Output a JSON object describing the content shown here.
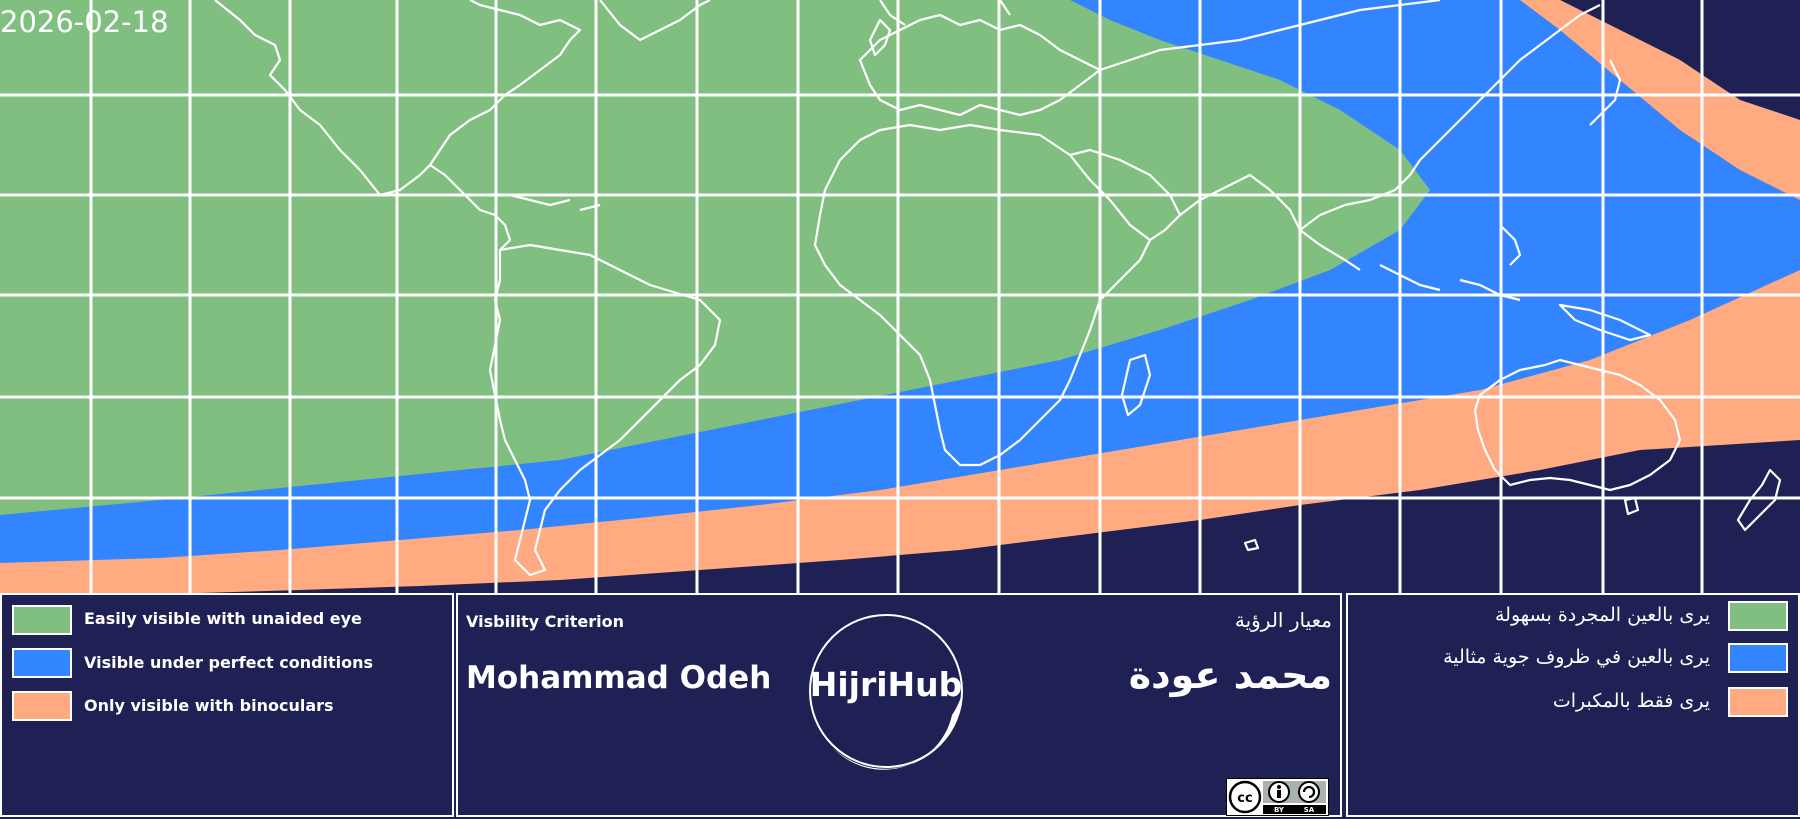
{
  "date": "2026-02-18",
  "colors": {
    "easy": "#80bf80",
    "perfect": "#3385ff",
    "binoculars": "#ffaa80",
    "none": "#1f2155",
    "lines": "#ffffff"
  },
  "legend_en": {
    "easy": "Easily visible with unaided eye",
    "perfect": "Visible under perfect conditions",
    "binoculars": "Only visible with binoculars"
  },
  "criterion": {
    "heading_en": "Visbility Criterion",
    "name_en": "Mohammad Odeh",
    "heading_ar": "معيار الرؤية",
    "name_ar": "محمد عودة"
  },
  "logo": {
    "text": "HijriHub",
    "icon": "crescent-moon-icon"
  },
  "license": {
    "icon": "cc-by-sa-icon",
    "by": "BY",
    "sa": "SA",
    "cc": "cc"
  },
  "legend_ar": {
    "easy": "يرى بالعين المجردة بسهولة",
    "perfect": "يرى بالعين في ظروف جوية مثالية",
    "binoculars": "يرى فقط بالمكبرات"
  }
}
